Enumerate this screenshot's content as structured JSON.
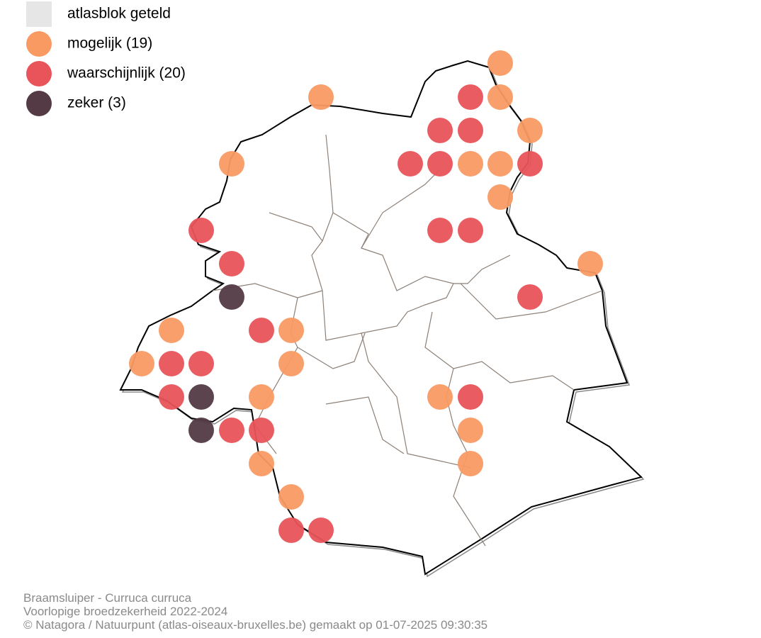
{
  "legend": [
    {
      "label": "atlasblok geteld",
      "color": "#e6e6e6"
    },
    {
      "label": "mogelijk (19)",
      "color": "#f99a63"
    },
    {
      "label": "waarschijnlijk (20)",
      "color": "#e8545a"
    },
    {
      "label": "zeker (3)",
      "color": "#533a45"
    }
  ],
  "footer": [
    "Braamsluiper - Curruca curruca",
    "Voorlopige broedzekerheid 2022-2024",
    "© Natagora / Natuurpunt (atlas-oiseaux-bruxelles.be) gemaakt op 01-07-2025 09:30:35"
  ]
}
